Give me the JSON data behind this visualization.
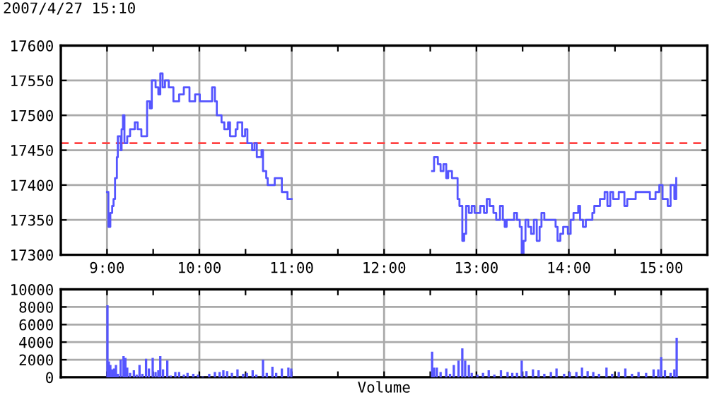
{
  "chart_data": [
    {
      "type": "step",
      "title": "2007/4/27 15:10",
      "xlim": [
        8.5,
        15.5
      ],
      "ylim": [
        17300,
        17600
      ],
      "xticks": [
        {
          "value": 8.5,
          "label": null
        },
        {
          "value": 9,
          "label": "9:00"
        },
        {
          "value": 9.5,
          "label": null
        },
        {
          "value": 10,
          "label": "10:00"
        },
        {
          "value": 10.5,
          "label": null
        },
        {
          "value": 11,
          "label": "11:00"
        },
        {
          "value": 11.5,
          "label": null
        },
        {
          "value": 12,
          "label": "12:00"
        },
        {
          "value": 12.5,
          "label": null
        },
        {
          "value": 13,
          "label": "13:00"
        },
        {
          "value": 13.5,
          "label": null
        },
        {
          "value": 14,
          "label": "14:00"
        },
        {
          "value": 14.5,
          "label": null
        },
        {
          "value": 15,
          "label": "15:00"
        }
      ],
      "yticks": [
        17300,
        17350,
        17400,
        17450,
        17500,
        17550,
        17600
      ],
      "grid": true,
      "legend": false,
      "tick_labels": "xy",
      "ref_lines": [
        {
          "axis": "y",
          "value": 17460,
          "label": null,
          "color": "#ff4444",
          "line_style": "dashed"
        }
      ],
      "series": [
        {
          "color": "#5555ff",
          "x": [
            9.0,
            9.015,
            9.036,
            9.056,
            9.071,
            9.087,
            9.107,
            9.117,
            9.148,
            9.158,
            9.173,
            9.189,
            9.219,
            9.25,
            9.301,
            9.332,
            9.372,
            9.434,
            9.464,
            9.485,
            9.526,
            9.556,
            9.577,
            9.602,
            9.628,
            9.668,
            9.719,
            9.781,
            9.832,
            9.893,
            9.954,
            10.005,
            10.061,
            10.138,
            10.168,
            10.189,
            10.24,
            10.27,
            10.311,
            10.332,
            10.393,
            10.413,
            10.464,
            10.495,
            10.52,
            10.571,
            10.597,
            10.622,
            10.673,
            10.689,
            10.724,
            10.74,
            10.816,
            10.893,
            10.954,
            11.0,
            12.0,
            12.52,
            12.541,
            12.582,
            12.612,
            12.643,
            12.673,
            12.694,
            12.735,
            12.796,
            12.816,
            12.847,
            12.867,
            12.888,
            12.918,
            12.949,
            12.98,
            13.02,
            13.041,
            13.082,
            13.112,
            13.143,
            13.184,
            13.214,
            13.255,
            13.286,
            13.306,
            13.327,
            13.388,
            13.408,
            13.439,
            13.469,
            13.49,
            13.51,
            13.531,
            13.561,
            13.592,
            13.622,
            13.653,
            13.684,
            13.704,
            13.735,
            13.776,
            13.857,
            13.878,
            13.908,
            13.939,
            13.99,
            14.02,
            14.051,
            14.102,
            14.122,
            14.153,
            14.184,
            14.255,
            14.276,
            14.337,
            14.388,
            14.418,
            14.449,
            14.48,
            14.541,
            14.602,
            14.633,
            14.684,
            14.724,
            14.776,
            14.878,
            14.939,
            14.98,
            15.015,
            15.051,
            15.071,
            15.102,
            15.143,
            15.163
          ],
          "values": [
            17390,
            17340,
            17360,
            17370,
            17380,
            17410,
            17440,
            17470,
            17450,
            17480,
            17500,
            17460,
            17470,
            17480,
            17490,
            17480,
            17470,
            17520,
            17510,
            17550,
            17540,
            17530,
            17560,
            17540,
            17550,
            17540,
            17520,
            17530,
            17540,
            17520,
            17530,
            17520,
            17520,
            17540,
            17520,
            17500,
            17490,
            17480,
            17490,
            17470,
            17480,
            17490,
            17470,
            17480,
            17460,
            17450,
            17460,
            17440,
            17450,
            17420,
            17410,
            17400,
            17410,
            17390,
            17380,
            17380,
            null,
            17420,
            17440,
            17430,
            17420,
            17430,
            17410,
            17420,
            17410,
            17380,
            17370,
            17320,
            17330,
            17370,
            17360,
            17370,
            17360,
            17360,
            17370,
            17360,
            17380,
            17370,
            17360,
            17350,
            17370,
            17350,
            17340,
            17350,
            17350,
            17360,
            17350,
            17340,
            17300,
            17320,
            17350,
            17340,
            17330,
            17350,
            17320,
            17340,
            17360,
            17350,
            17350,
            17340,
            17320,
            17330,
            17340,
            17330,
            17350,
            17360,
            17370,
            17350,
            17340,
            17350,
            17360,
            17370,
            17380,
            17390,
            17370,
            17390,
            17380,
            17390,
            17370,
            17380,
            17380,
            17390,
            17390,
            17380,
            17390,
            17400,
            17380,
            17380,
            17370,
            17400,
            17380,
            17410
          ]
        }
      ]
    },
    {
      "type": "bar",
      "xlabel": "Volume",
      "xlim": [
        8.5,
        15.5
      ],
      "ylim": [
        0,
        10000
      ],
      "xticks": [
        {
          "value": 8.5,
          "label": null
        },
        9,
        {
          "value": 9.5,
          "label": null
        },
        10,
        {
          "value": 10.5,
          "label": null
        },
        11,
        {
          "value": 11.5,
          "label": null
        },
        12,
        {
          "value": 12.5,
          "label": null
        },
        13,
        {
          "value": 13.5,
          "label": null
        },
        14,
        {
          "value": 14.5,
          "label": null
        },
        15
      ],
      "yticks": [
        0,
        2000,
        4000,
        6000,
        8000,
        10000
      ],
      "grid": true,
      "legend": false,
      "tick_labels": "y",
      "series": [
        {
          "color": "#5555ff",
          "x": [
            9.005,
            9.02,
            9.036,
            9.056,
            9.077,
            9.097,
            9.117,
            9.148,
            9.179,
            9.199,
            9.219,
            9.25,
            9.291,
            9.321,
            9.352,
            9.383,
            9.423,
            9.454,
            9.495,
            9.526,
            9.556,
            9.577,
            9.607,
            9.653,
            9.689,
            9.74,
            9.781,
            9.832,
            9.872,
            9.934,
            9.985,
            10.036,
            10.107,
            10.168,
            10.219,
            10.26,
            10.301,
            10.352,
            10.413,
            10.474,
            10.515,
            10.577,
            10.617,
            10.689,
            10.73,
            10.791,
            10.832,
            10.893,
            10.964,
            10.995,
            12.52,
            12.541,
            12.571,
            12.612,
            12.673,
            12.714,
            12.755,
            12.806,
            12.847,
            12.878,
            12.918,
            12.949,
            13.01,
            13.071,
            13.133,
            13.194,
            13.265,
            13.337,
            13.388,
            13.439,
            13.49,
            13.541,
            13.612,
            13.673,
            13.735,
            13.806,
            13.867,
            13.949,
            14.01,
            14.082,
            14.143,
            14.204,
            14.265,
            14.327,
            14.408,
            14.469,
            14.541,
            14.612,
            14.684,
            14.755,
            14.837,
            14.918,
            14.969,
            15.0,
            15.041,
            15.102,
            15.143,
            15.168
          ],
          "values": [
            8200,
            1800,
            1400,
            900,
            1000,
            1400,
            400,
            2000,
            2400,
            2200,
            1100,
            500,
            800,
            300,
            1400,
            400,
            2100,
            1000,
            2200,
            600,
            800,
            2400,
            900,
            1900,
            200,
            600,
            600,
            300,
            500,
            400,
            300,
            100,
            400,
            600,
            600,
            800,
            700,
            500,
            900,
            400,
            500,
            800,
            300,
            2000,
            500,
            1200,
            500,
            1000,
            1100,
            1000,
            2900,
            1100,
            1100,
            600,
            1000,
            400,
            1400,
            1900,
            3300,
            1900,
            1400,
            500,
            300,
            500,
            800,
            300,
            800,
            600,
            500,
            500,
            1900,
            700,
            900,
            800,
            400,
            600,
            1000,
            400,
            600,
            600,
            1100,
            700,
            600,
            400,
            1100,
            400,
            600,
            1000,
            400,
            600,
            500,
            900,
            900,
            2300,
            800,
            500,
            900,
            4500
          ]
        }
      ]
    }
  ]
}
